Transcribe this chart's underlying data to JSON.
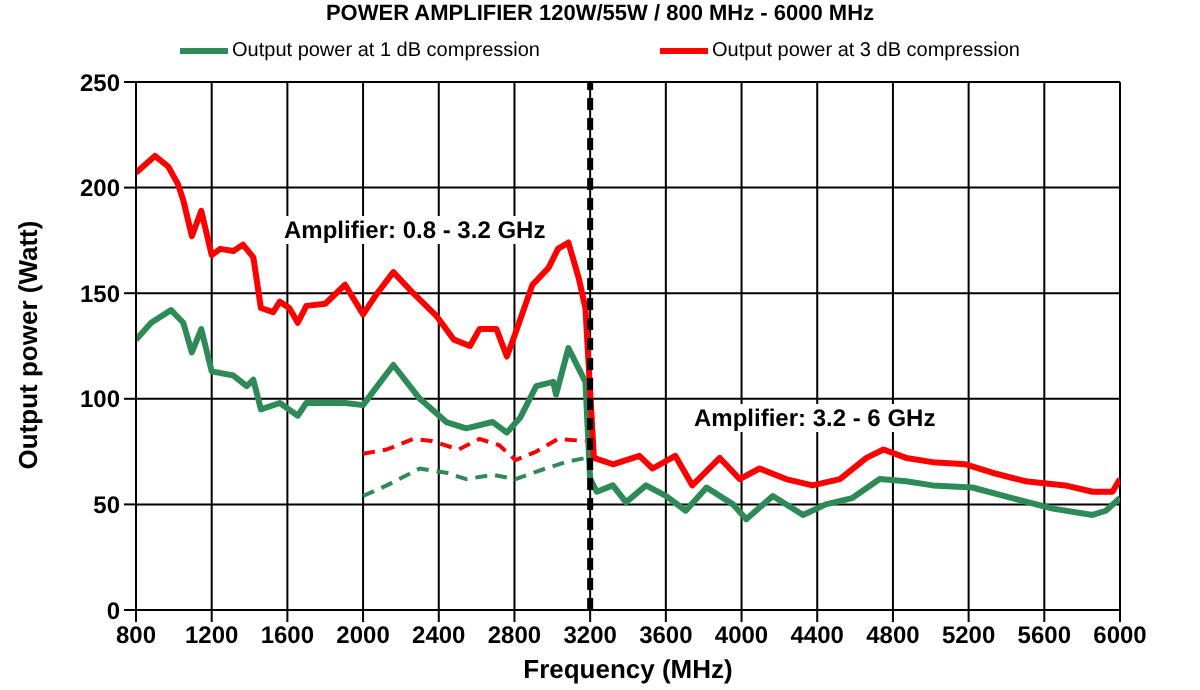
{
  "chart_data": {
    "type": "line",
    "title": "POWER AMPLIFIER 120W/55W / 800 MHz - 6000 MHz",
    "xlabel": "Frequency  (MHz)",
    "ylabel": "Output power (Watt)",
    "annotations": [
      "Amplifier: 0.8 - 3.2 GHz",
      "Amplifier: 3.2 - 6 GHz"
    ],
    "series": [
      {
        "name": "Output power at 1 dB compression",
        "color": "#2e8b57",
        "x": [
          800,
          880,
          985,
          1050,
          1095,
          1145,
          1200,
          1315,
          1385,
          1420,
          1460,
          1560,
          1655,
          1700,
          1905,
          2000,
          2075,
          2160,
          2300,
          2440,
          2545,
          2685,
          2760,
          2830,
          2915,
          3005,
          3020,
          3085,
          3175,
          3200,
          3235,
          3320,
          3390,
          3495,
          3600,
          3705,
          3815,
          3955,
          4025,
          4165,
          4325,
          4445,
          4585,
          4730,
          4870,
          5010,
          5220,
          5430,
          5645,
          5855,
          5925,
          6000
        ],
        "values": [
          128,
          136,
          142,
          136,
          122,
          133,
          113,
          111,
          106,
          109,
          95,
          98,
          92,
          98,
          98,
          97,
          106,
          116,
          100,
          89,
          86,
          89,
          84,
          91,
          106,
          108,
          102,
          124,
          108,
          62,
          56,
          59,
          51,
          59,
          54,
          47,
          58,
          50,
          43,
          54,
          45,
          50,
          53,
          62,
          61,
          59,
          58,
          53,
          48,
          45,
          47,
          53
        ]
      },
      {
        "name": "Output power at 3 dB compression",
        "color": "#ff0000",
        "x": [
          800,
          900,
          970,
          1020,
          1050,
          1095,
          1145,
          1200,
          1245,
          1315,
          1365,
          1420,
          1460,
          1525,
          1560,
          1610,
          1655,
          1700,
          1800,
          1905,
          2000,
          2075,
          2160,
          2265,
          2390,
          2480,
          2565,
          2615,
          2705,
          2760,
          2805,
          2895,
          2980,
          3030,
          3085,
          3140,
          3175,
          3220,
          3320,
          3460,
          3530,
          3650,
          3740,
          3885,
          3990,
          4095,
          4235,
          4375,
          4520,
          4660,
          4750,
          4870,
          5010,
          5185,
          5325,
          5500,
          5710,
          5855,
          5960,
          6000
        ],
        "values": [
          207,
          215,
          210,
          202,
          194,
          177,
          189,
          168,
          171,
          170,
          173,
          167,
          143,
          141,
          146,
          143,
          136,
          144,
          145,
          154,
          140,
          150,
          160,
          150,
          139,
          128,
          125,
          133,
          133,
          120,
          131,
          154,
          162,
          171,
          174,
          157,
          143,
          72,
          69,
          73,
          67,
          73,
          59,
          72,
          62,
          67,
          62,
          59,
          62,
          72,
          76,
          72,
          70,
          69,
          65,
          61,
          59,
          56,
          56,
          62
        ]
      },
      {
        "color": "#ff0000",
        "line_style": "dashed",
        "x": [
          2000,
          2125,
          2265,
          2365,
          2505,
          2615,
          2720,
          2805,
          2915,
          3030,
          3175
        ],
        "values": [
          74,
          76,
          81,
          80,
          76,
          81,
          78,
          71,
          75,
          81,
          80
        ]
      },
      {
        "color": "#2e8b57",
        "line_style": "dashed",
        "x": [
          2000,
          2125,
          2300,
          2440,
          2545,
          2685,
          2805,
          2965,
          3070,
          3175
        ],
        "values": [
          54,
          59,
          67,
          65,
          62,
          64,
          62,
          67,
          70,
          72
        ]
      }
    ],
    "xlim": [
      800,
      6000
    ],
    "xticks": [
      800,
      1200,
      1600,
      2000,
      2400,
      2800,
      3200,
      3600,
      4000,
      4400,
      4800,
      5200,
      5600,
      6000
    ],
    "ylim": [
      0,
      250
    ],
    "yticks": [
      0,
      50,
      100,
      150,
      200,
      250
    ],
    "ref_lines": [
      {
        "axis": "x",
        "value": 3200,
        "color": "#000000",
        "line_style": "dashed"
      }
    ],
    "grid": true,
    "legend": "top",
    "marker": "none",
    "line_style": "solid"
  }
}
